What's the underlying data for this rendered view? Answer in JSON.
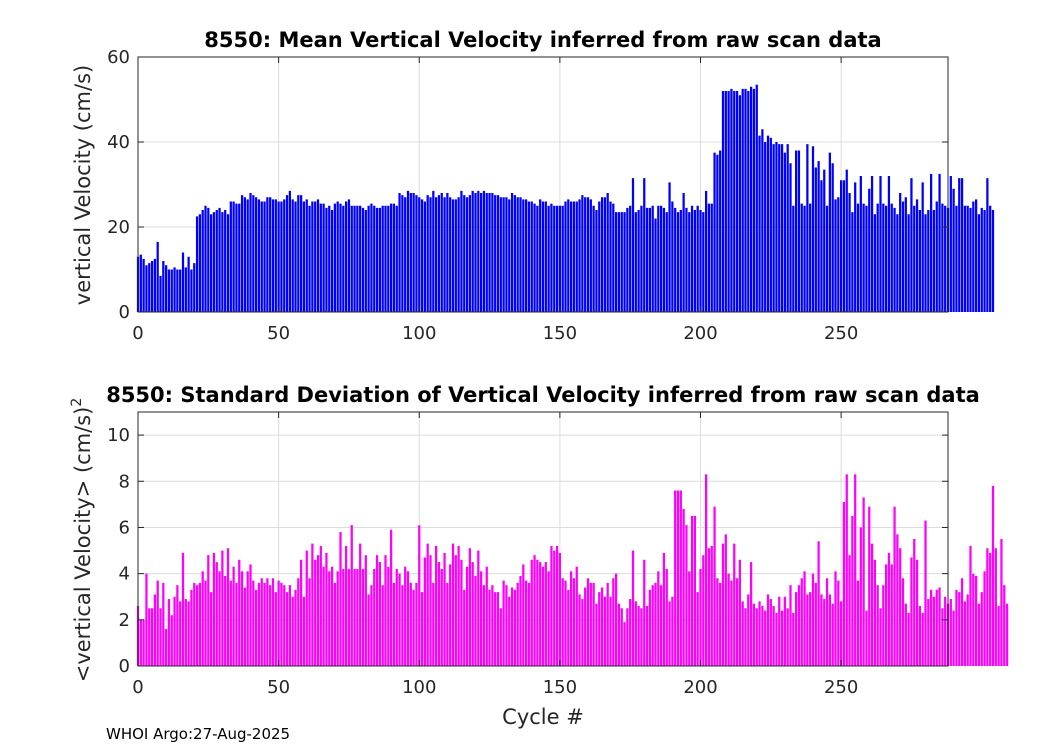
{
  "chart_data": [
    {
      "type": "bar",
      "title": "8550: Mean Vertical Velocity inferred from raw scan data",
      "xlabel": "",
      "ylabel": "vertical Velocity (cm/s)",
      "xlim": [
        0,
        288
      ],
      "ylim": [
        0,
        60
      ],
      "xticks": [
        0,
        50,
        100,
        150,
        200,
        250
      ],
      "yticks": [
        0,
        20,
        40,
        60
      ],
      "grid": true,
      "color": "#0000ff",
      "x_start": 0,
      "values": [
        13,
        13.5,
        12.5,
        11,
        11.5,
        12,
        12.5,
        16.5,
        8.5,
        12,
        11,
        10,
        10,
        10.5,
        10,
        10,
        14,
        10.5,
        13,
        10,
        11.5,
        22.5,
        23,
        24,
        25,
        24.5,
        23,
        23.5,
        24,
        24.5,
        23.5,
        24,
        23,
        26,
        26,
        25.5,
        25.5,
        27.5,
        27,
        26.5,
        28,
        27.5,
        27,
        26.5,
        26,
        26,
        27,
        27,
        26.5,
        26.5,
        26,
        26,
        26.5,
        27.5,
        28.5,
        26.5,
        26,
        27.5,
        27.5,
        26,
        26.5,
        25,
        26,
        26,
        26.5,
        25.5,
        25.5,
        24.5,
        25,
        24,
        25.5,
        26,
        25.5,
        25,
        26,
        26.5,
        25,
        25,
        25,
        25,
        24.5,
        24,
        25,
        25.5,
        25,
        24.5,
        24.5,
        25,
        25,
        25,
        25.5,
        25.5,
        25,
        28,
        27.5,
        27,
        28.5,
        28,
        28,
        27.5,
        27,
        26.5,
        26,
        27.5,
        27,
        28.5,
        27,
        27.5,
        28,
        27,
        28,
        27,
        26.5,
        26.5,
        27,
        28.5,
        27.5,
        27,
        27.5,
        28.5,
        28,
        28.5,
        28,
        28.5,
        28,
        28,
        28,
        27.5,
        27.5,
        27,
        27,
        27,
        26.5,
        28,
        27.5,
        27,
        27,
        26.5,
        26.5,
        26,
        26,
        25.5,
        25,
        26.5,
        26,
        26,
        25,
        25.5,
        25,
        25,
        25,
        25,
        26,
        26.5,
        26,
        26,
        26,
        26.5,
        27.5,
        27,
        27,
        26.5,
        25,
        24,
        26,
        27,
        27,
        28,
        26,
        25.5,
        23.5,
        23.5,
        23.5,
        23.5,
        24.5,
        25,
        31.5,
        23.5,
        24,
        25,
        31.5,
        24.5,
        24.5,
        25,
        22,
        25,
        25,
        24.5,
        23.5,
        30.5,
        26,
        24.5,
        23.5,
        24,
        28,
        24.5,
        23.5,
        25,
        24,
        25,
        24,
        23.5,
        28.5,
        25.5,
        25.5,
        37.5,
        37,
        38,
        52,
        52,
        52,
        52.5,
        52,
        52,
        51,
        52.5,
        52.5,
        52,
        53,
        52.5,
        53.5,
        41.5,
        43,
        40,
        41.5,
        41,
        39.5,
        40,
        39.5,
        39.5,
        37.5,
        39.5,
        35,
        25,
        38,
        38,
        25.5,
        25,
        39.5,
        25.5,
        39,
        34,
        35.5,
        31,
        33.5,
        25,
        37.5,
        35,
        26.5,
        27,
        31,
        31,
        33.5,
        28,
        23.5,
        30.5,
        25.5,
        32,
        25.5,
        25,
        29,
        32,
        23,
        25.5,
        32,
        25.5,
        25,
        32,
        25.5,
        24.5,
        23,
        28,
        26,
        27,
        23,
        31.5,
        25,
        26.5,
        24,
        30.5,
        23,
        24,
        32.5,
        24,
        26,
        32.5,
        25.5,
        25,
        24.5,
        32,
        29,
        25,
        31.5,
        31.5,
        25,
        25,
        24.5,
        26,
        26.5,
        23,
        24.5,
        24,
        31.5,
        25,
        24
      ]
    },
    {
      "type": "bar",
      "title": "8550: Standard Deviation of Vertical Velocity inferred from raw scan data",
      "xlabel": "Cycle #",
      "ylabel": "<vertical Velocity> (cm/s)",
      "ylabel_superscript": "2",
      "xlim": [
        0,
        288
      ],
      "ylim": [
        0,
        11
      ],
      "xticks": [
        0,
        50,
        100,
        150,
        200,
        250
      ],
      "yticks": [
        0,
        2,
        4,
        6,
        8,
        10
      ],
      "grid": true,
      "color": "#ff00ff",
      "x_start": 0,
      "values": [
        2.6,
        2,
        2,
        4,
        2.5,
        2.5,
        3.1,
        3.7,
        2.5,
        3.6,
        1.6,
        2.9,
        2.2,
        3,
        3.5,
        2.8,
        4.9,
        2.9,
        2.8,
        3.3,
        3.6,
        3.5,
        3.6,
        4.1,
        3.7,
        4.8,
        3.2,
        4.9,
        4.5,
        4.1,
        5,
        3.9,
        5.1,
        3.7,
        4.3,
        3.6,
        4.6,
        4.1,
        3.4,
        4.1,
        4.4,
        3.7,
        3.3,
        3.6,
        3.8,
        3.6,
        3.8,
        3.5,
        3.8,
        3.2,
        3.7,
        3.6,
        3.5,
        3.2,
        3.5,
        3,
        3.3,
        3.8,
        4.6,
        3,
        5,
        3.8,
        5.3,
        4.6,
        4.8,
        5.2,
        4.3,
        4.9,
        4.1,
        4.3,
        3.6,
        4.1,
        5.8,
        4.2,
        5.2,
        4.2,
        6.1,
        4.2,
        4.2,
        5.3,
        4.2,
        4.8,
        3.1,
        3.5,
        4.2,
        4.8,
        4.5,
        3.5,
        4.8,
        4.3,
        5.9,
        3.6,
        4.2,
        4,
        3.5,
        4.3,
        4.1,
        3.6,
        3.3,
        3.6,
        6.1,
        3.2,
        4.7,
        5.3,
        4.8,
        3.6,
        5.2,
        4.5,
        4.2,
        4.9,
        3.6,
        4.4,
        5.3,
        4.8,
        5.2,
        4.6,
        3.3,
        4.3,
        5.1,
        4.5,
        3.9,
        5,
        4.1,
        3.5,
        4.3,
        3.3,
        3.5,
        3.2,
        3.2,
        2.5,
        3.7,
        3.5,
        3,
        3.4,
        3.3,
        3.6,
        3.9,
        4.4,
        3.7,
        3.6,
        4.6,
        4.8,
        4.6,
        4.5,
        4.3,
        4.5,
        4.1,
        5.2,
        5,
        5.2,
        4.9,
        3.8,
        3.7,
        3.3,
        4.1,
        3.8,
        4.3,
        3.1,
        2.9,
        3.4,
        3.8,
        3.6,
        3.6,
        2.7,
        3.2,
        3.4,
        3,
        3.6,
        3,
        3.8,
        4,
        2.7,
        2.5,
        1.9,
        2.5,
        2.9,
        5,
        2.8,
        2.6,
        2.5,
        4.6,
        2.6,
        3.3,
        3.5,
        3.6,
        4.1,
        3.5,
        4.9,
        4.2,
        2.8,
        3,
        7.6,
        7.6,
        7.6,
        6.8,
        6.1,
        4.1,
        6.5,
        6.5,
        3.2,
        4.2,
        4.8,
        8.3,
        5.1,
        5.2,
        6.9,
        3.8,
        3.6,
        5.3,
        5.7,
        4,
        3.7,
        5.3,
        3.8,
        4.6,
        2.8,
        2.5,
        3.1,
        4.5,
        2.7,
        2.5,
        2.8,
        2.6,
        2.4,
        3.1,
        2.9,
        2.6,
        2.3,
        3,
        2.4,
        3,
        2.5,
        3.5,
        2.3,
        3.2,
        3.5,
        3.8,
        4.1,
        3.1,
        3.2,
        4,
        3.6,
        5.4,
        3.1,
        2.9,
        3.8,
        3.1,
        2.7,
        4.1,
        3.7,
        2.8,
        7.1,
        8.3,
        4.8,
        6.5,
        8.3,
        3.7,
        6,
        7.3,
        2.4,
        6.9,
        5.3,
        4.6,
        3.5,
        2.5,
        3.5,
        4.4,
        4.9,
        4.4,
        6.9,
        5.7,
        5.1,
        3.8,
        2.7,
        2.3,
        4.7,
        5.5,
        4.6,
        2.6,
        2.3,
        6.3,
        2.9,
        3.3,
        3,
        3.3,
        3.4,
        2.5,
        3,
        2.7,
        2.9,
        2.4,
        3.3,
        3.2,
        3.8,
        2.8,
        3.1,
        5.2,
        4,
        3.9,
        2.7,
        3.2,
        4.1,
        5.1,
        4.9,
        7.8,
        5.1,
        2.6,
        5.5,
        3.5,
        2.7
      ]
    }
  ],
  "footer": {
    "text": "WHOI Argo:27-Aug-2025"
  }
}
